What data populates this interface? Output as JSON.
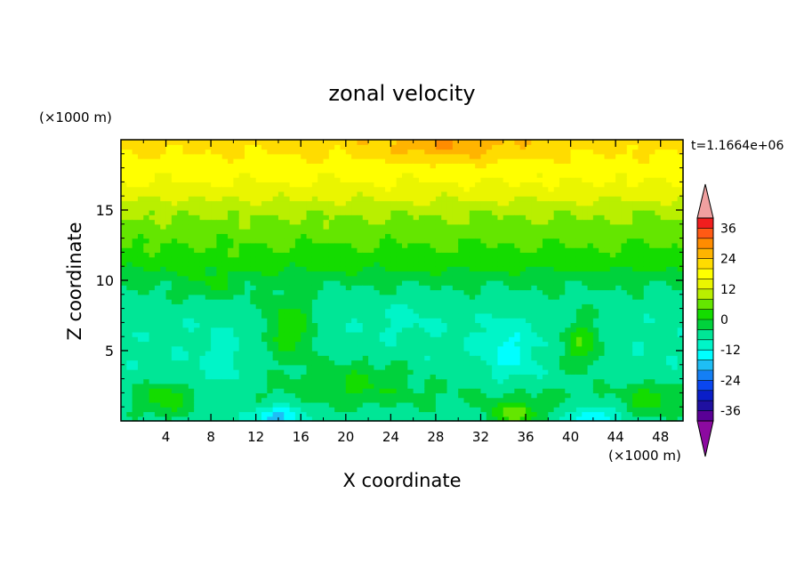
{
  "chart_data": {
    "type": "heatmap",
    "title": "zonal velocity",
    "time_label": "t=1.1664e+06",
    "xlabel": "X coordinate",
    "ylabel": "Z coordinate",
    "x_units": "(×1000 m)",
    "y_units": "(×1000 m)",
    "xlim": [
      0,
      50
    ],
    "ylim": [
      0,
      20
    ],
    "x_ticks": [
      4,
      8,
      12,
      16,
      20,
      24,
      28,
      32,
      36,
      40,
      44,
      48
    ],
    "y_ticks": [
      5,
      10,
      15
    ],
    "colorbar": {
      "levels": [
        -40,
        -36,
        -32,
        -28,
        -24,
        -20,
        -16,
        -12,
        -8,
        -4,
        0,
        4,
        8,
        12,
        16,
        20,
        24,
        28,
        32,
        36,
        40
      ],
      "tick_labels": [
        "-36",
        "-24",
        "-12",
        "0",
        "12",
        "24",
        "36"
      ],
      "tick_values": [
        -36,
        -24,
        -12,
        0,
        12,
        24,
        36
      ],
      "colors": [
        "#5a0096",
        "#1f10a0",
        "#0a1ec8",
        "#0a46f0",
        "#147ff5",
        "#1ebef5",
        "#00ffff",
        "#00f5c8",
        "#00e696",
        "#00d23c",
        "#14dc00",
        "#64e600",
        "#b9ef00",
        "#eaf500",
        "#ffff00",
        "#ffdc00",
        "#ffb400",
        "#ff8c00",
        "#ff5a14",
        "#f01e1e"
      ],
      "under_color": "#8c0aa0",
      "over_color": "#f0a0a0"
    },
    "z_profile": [
      {
        "z": 0,
        "u": -6
      },
      {
        "z": 1,
        "u": -5
      },
      {
        "z": 2,
        "u": -4
      },
      {
        "z": 3,
        "u": -6
      },
      {
        "z": 4,
        "u": -7
      },
      {
        "z": 5,
        "u": -7
      },
      {
        "z": 6,
        "u": -7
      },
      {
        "z": 7,
        "u": -7
      },
      {
        "z": 8,
        "u": -6
      },
      {
        "z": 9,
        "u": -5
      },
      {
        "z": 10,
        "u": -3
      },
      {
        "z": 11,
        "u": 1
      },
      {
        "z": 12,
        "u": 3
      },
      {
        "z": 13,
        "u": 5
      },
      {
        "z": 14,
        "u": 7
      },
      {
        "z": 15,
        "u": 9
      },
      {
        "z": 16,
        "u": 13
      },
      {
        "z": 17,
        "u": 16
      },
      {
        "z": 18,
        "u": 18
      },
      {
        "z": 19,
        "u": 20
      },
      {
        "z": 20,
        "u": 22
      }
    ],
    "features": [
      {
        "x": 15,
        "z": 6.5,
        "sx": 2.2,
        "sz": 2.2,
        "amp": 10
      },
      {
        "x": 4,
        "z": 1.5,
        "sx": 2.0,
        "sz": 1.2,
        "amp": 7
      },
      {
        "x": 41,
        "z": 5.5,
        "sx": 1.8,
        "sz": 1.8,
        "amp": 10
      },
      {
        "x": 21,
        "z": 3,
        "sx": 5,
        "sz": 1.6,
        "amp": 6
      },
      {
        "x": 14,
        "z": 0.3,
        "sx": 2.2,
        "sz": 0.8,
        "amp": -12
      },
      {
        "x": 42,
        "z": 0.3,
        "sx": 2.0,
        "sz": 0.7,
        "amp": -10
      },
      {
        "x": 34.5,
        "z": 5,
        "sx": 2.2,
        "sz": 2.0,
        "amp": -6
      },
      {
        "x": 35,
        "z": 0.6,
        "sx": 2.2,
        "sz": 0.9,
        "amp": 12
      },
      {
        "x": 47,
        "z": 1.5,
        "sx": 2.0,
        "sz": 1.2,
        "amp": 7
      },
      {
        "x": 9,
        "z": 4,
        "sx": 2.0,
        "sz": 2.5,
        "amp": -3
      },
      {
        "x": 29,
        "z": 19.5,
        "sx": 6,
        "sz": 1.0,
        "amp": 6
      },
      {
        "x": 8,
        "z": 9.5,
        "sx": 2.5,
        "sz": 1.0,
        "amp": 4
      },
      {
        "x": 25,
        "z": 7.5,
        "sx": 3,
        "sz": 1.5,
        "amp": -2
      }
    ]
  }
}
